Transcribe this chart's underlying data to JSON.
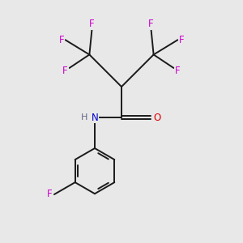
{
  "bg_color": "#e8e8e8",
  "bond_color": "#1a1a1a",
  "F_color": "#cc00cc",
  "N_color": "#0000cc",
  "O_color": "#dd0000",
  "H_color": "#666688",
  "font_size": 8.5,
  "line_width": 1.4,
  "fig_size": [
    3.0,
    3.0
  ],
  "dpi": 100,
  "xlim": [
    0,
    8
  ],
  "ylim": [
    0,
    9
  ]
}
